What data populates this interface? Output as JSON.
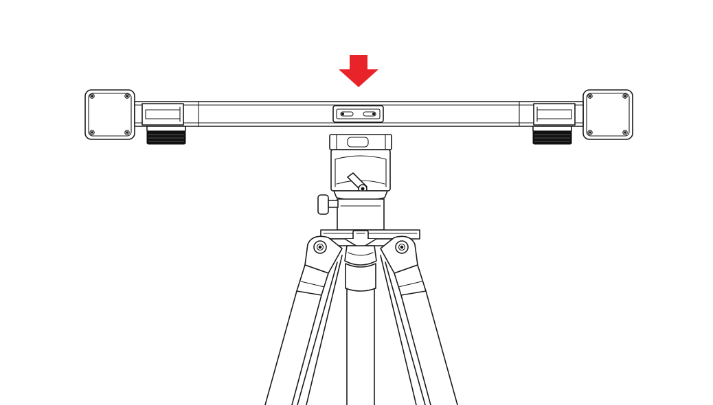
{
  "diagram": {
    "subject": "rail-mounted-on-tripod",
    "colors": {
      "arrow": "#e8242a",
      "line": "#1a1a1a",
      "background": "#ffffff"
    },
    "icons": [
      "down-arrow-icon"
    ]
  }
}
